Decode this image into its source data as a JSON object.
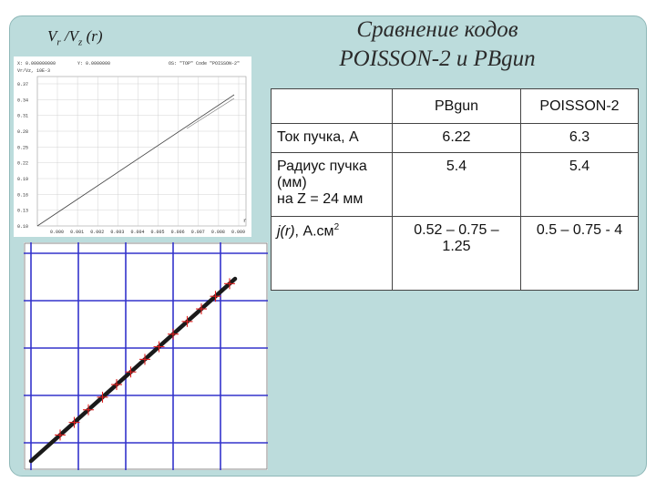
{
  "ratio_label": {
    "v1": "V",
    "sub1": "r",
    "sep": " /",
    "v2": "V",
    "sub2": "z",
    "arg": " (r)"
  },
  "title": {
    "line1": "Сравнение кодов",
    "line2": "POISSON-2 и PBgun"
  },
  "plot1": {
    "header_left": "X: 0.000000000",
    "header_mid": "Y: 0.0000000",
    "header_right": "OS: \"TOP\" Code \"POISSON-2\"",
    "sub_header": "Vr/Vz, 10E-3",
    "y_ticks": [
      "0.37",
      "0.34",
      "0.31",
      "0.28",
      "0.25",
      "0.22",
      "0.19",
      "0.16",
      "0.13",
      "0.10"
    ],
    "x_ticks": [
      "0.000",
      "0.001",
      "0.002",
      "0.003",
      "0.004",
      "0.005",
      "0.006",
      "0.007",
      "0.008",
      "0.009"
    ],
    "corner": "r"
  },
  "table": {
    "headers": [
      "",
      "PBgun",
      "POISSON-2"
    ],
    "rows": [
      {
        "label": "Ток пучка, А",
        "pbgun": "6.22",
        "poisson": "6.3"
      },
      {
        "label_lines": [
          "Радиус пучка",
          "(мм)",
          "на Z = 24 мм"
        ],
        "pbgun": "5.4",
        "poisson": "5.4"
      },
      {
        "label_main": "j(r)",
        "label_rest": ", А.см",
        "label_sup": "2",
        "pbgun_lines": [
          "0.52 – 0.75 –",
          "1.25"
        ],
        "poisson": "0.5 – 0.75 - 4"
      }
    ]
  },
  "colors": {
    "panel": "#bcdcdc",
    "grid": "#c8c8c8",
    "line_dark": "#222222",
    "marker": "#e02020",
    "grid2": "#3333cc"
  }
}
